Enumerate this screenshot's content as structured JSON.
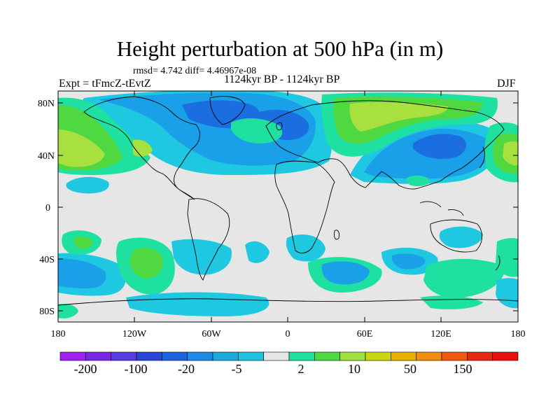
{
  "title": "Height perturbation at 500 hPa (in m)",
  "stats": "rmsd= 4.742 diff= 4.46967e-08",
  "expt": "Expt = tFmcZ-tEvtZ",
  "period": "1124kyr BP - 1124kyr BP",
  "season": "DJF",
  "lat_labels": [
    "80N",
    "40N",
    "0",
    "40S",
    "80S"
  ],
  "lon_labels": [
    "180",
    "120W",
    "60W",
    "0",
    "60E",
    "120E",
    "180"
  ],
  "colorbar": {
    "labels": [
      "-200",
      "-100",
      "-20",
      "-5",
      "2",
      "10",
      "50",
      "150"
    ],
    "colors": [
      "#a020f0",
      "#7a28e6",
      "#5a3be0",
      "#2a45d8",
      "#1e64e0",
      "#1a8ae6",
      "#1aaadc",
      "#20c4e0",
      "#e6e6e6",
      "#20e0a0",
      "#50d840",
      "#a0e040",
      "#c8d810",
      "#e6b400",
      "#f08c10",
      "#f05a10",
      "#e62a10",
      "#e61010"
    ]
  },
  "palette": {
    "background": "#e6e6e6",
    "lightblue": "#1ec8e0",
    "blue": "#1aa0e8",
    "darkblue": "#1a6ee0",
    "green": "#1ee0a0",
    "lime": "#50d840",
    "yellowgreen": "#a8e040",
    "coast": "#000000"
  }
}
